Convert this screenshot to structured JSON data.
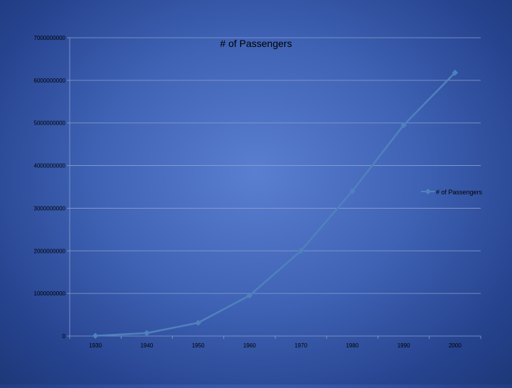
{
  "chart_data": {
    "type": "line",
    "title": "# of Passengers",
    "xlabel": "",
    "ylabel": "",
    "categories": [
      "1930",
      "1940",
      "1950",
      "1960",
      "1970",
      "1980",
      "1990",
      "2000"
    ],
    "series": [
      {
        "name": "# of Passengers",
        "values": [
          6000000,
          68000000,
          310000000,
          950000000,
          2000000000,
          3400000000,
          4950000000,
          6180000000
        ]
      }
    ],
    "y_ticks": [
      "0",
      "1000000000",
      "2000000000",
      "3000000000",
      "4000000000",
      "5000000000",
      "6000000000",
      "7000000000"
    ],
    "ylim": [
      0,
      7000000000
    ],
    "grid": true,
    "legend_position": "right",
    "colors": {
      "series": "#4f81bd",
      "grid": "#8c9ed0",
      "text": "#000000"
    }
  }
}
